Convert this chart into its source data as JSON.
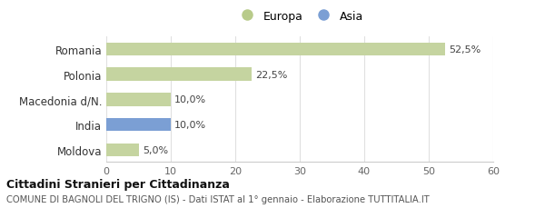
{
  "categories": [
    "Romania",
    "Polonia",
    "Macedonia d/N.",
    "India",
    "Moldova"
  ],
  "values": [
    52.5,
    22.5,
    10.0,
    10.0,
    5.0
  ],
  "bar_colors": [
    "#c5d4a0",
    "#c5d4a0",
    "#c5d4a0",
    "#7b9fd4",
    "#c5d4a0"
  ],
  "labels": [
    "52,5%",
    "22,5%",
    "10,0%",
    "10,0%",
    "5,0%"
  ],
  "xlim": [
    0,
    60
  ],
  "xticks": [
    0,
    10,
    20,
    30,
    40,
    50,
    60
  ],
  "legend_europa_color": "#b8cb8a",
  "legend_asia_color": "#7b9fd4",
  "title_bold": "Cittadini Stranieri per Cittadinanza",
  "subtitle": "COMUNE DI BAGNOLI DEL TRIGNO (IS) - Dati ISTAT al 1° gennaio - Elaborazione TUTTITALIA.IT",
  "background_color": "#ffffff",
  "grid_color": "#e0e0e0"
}
